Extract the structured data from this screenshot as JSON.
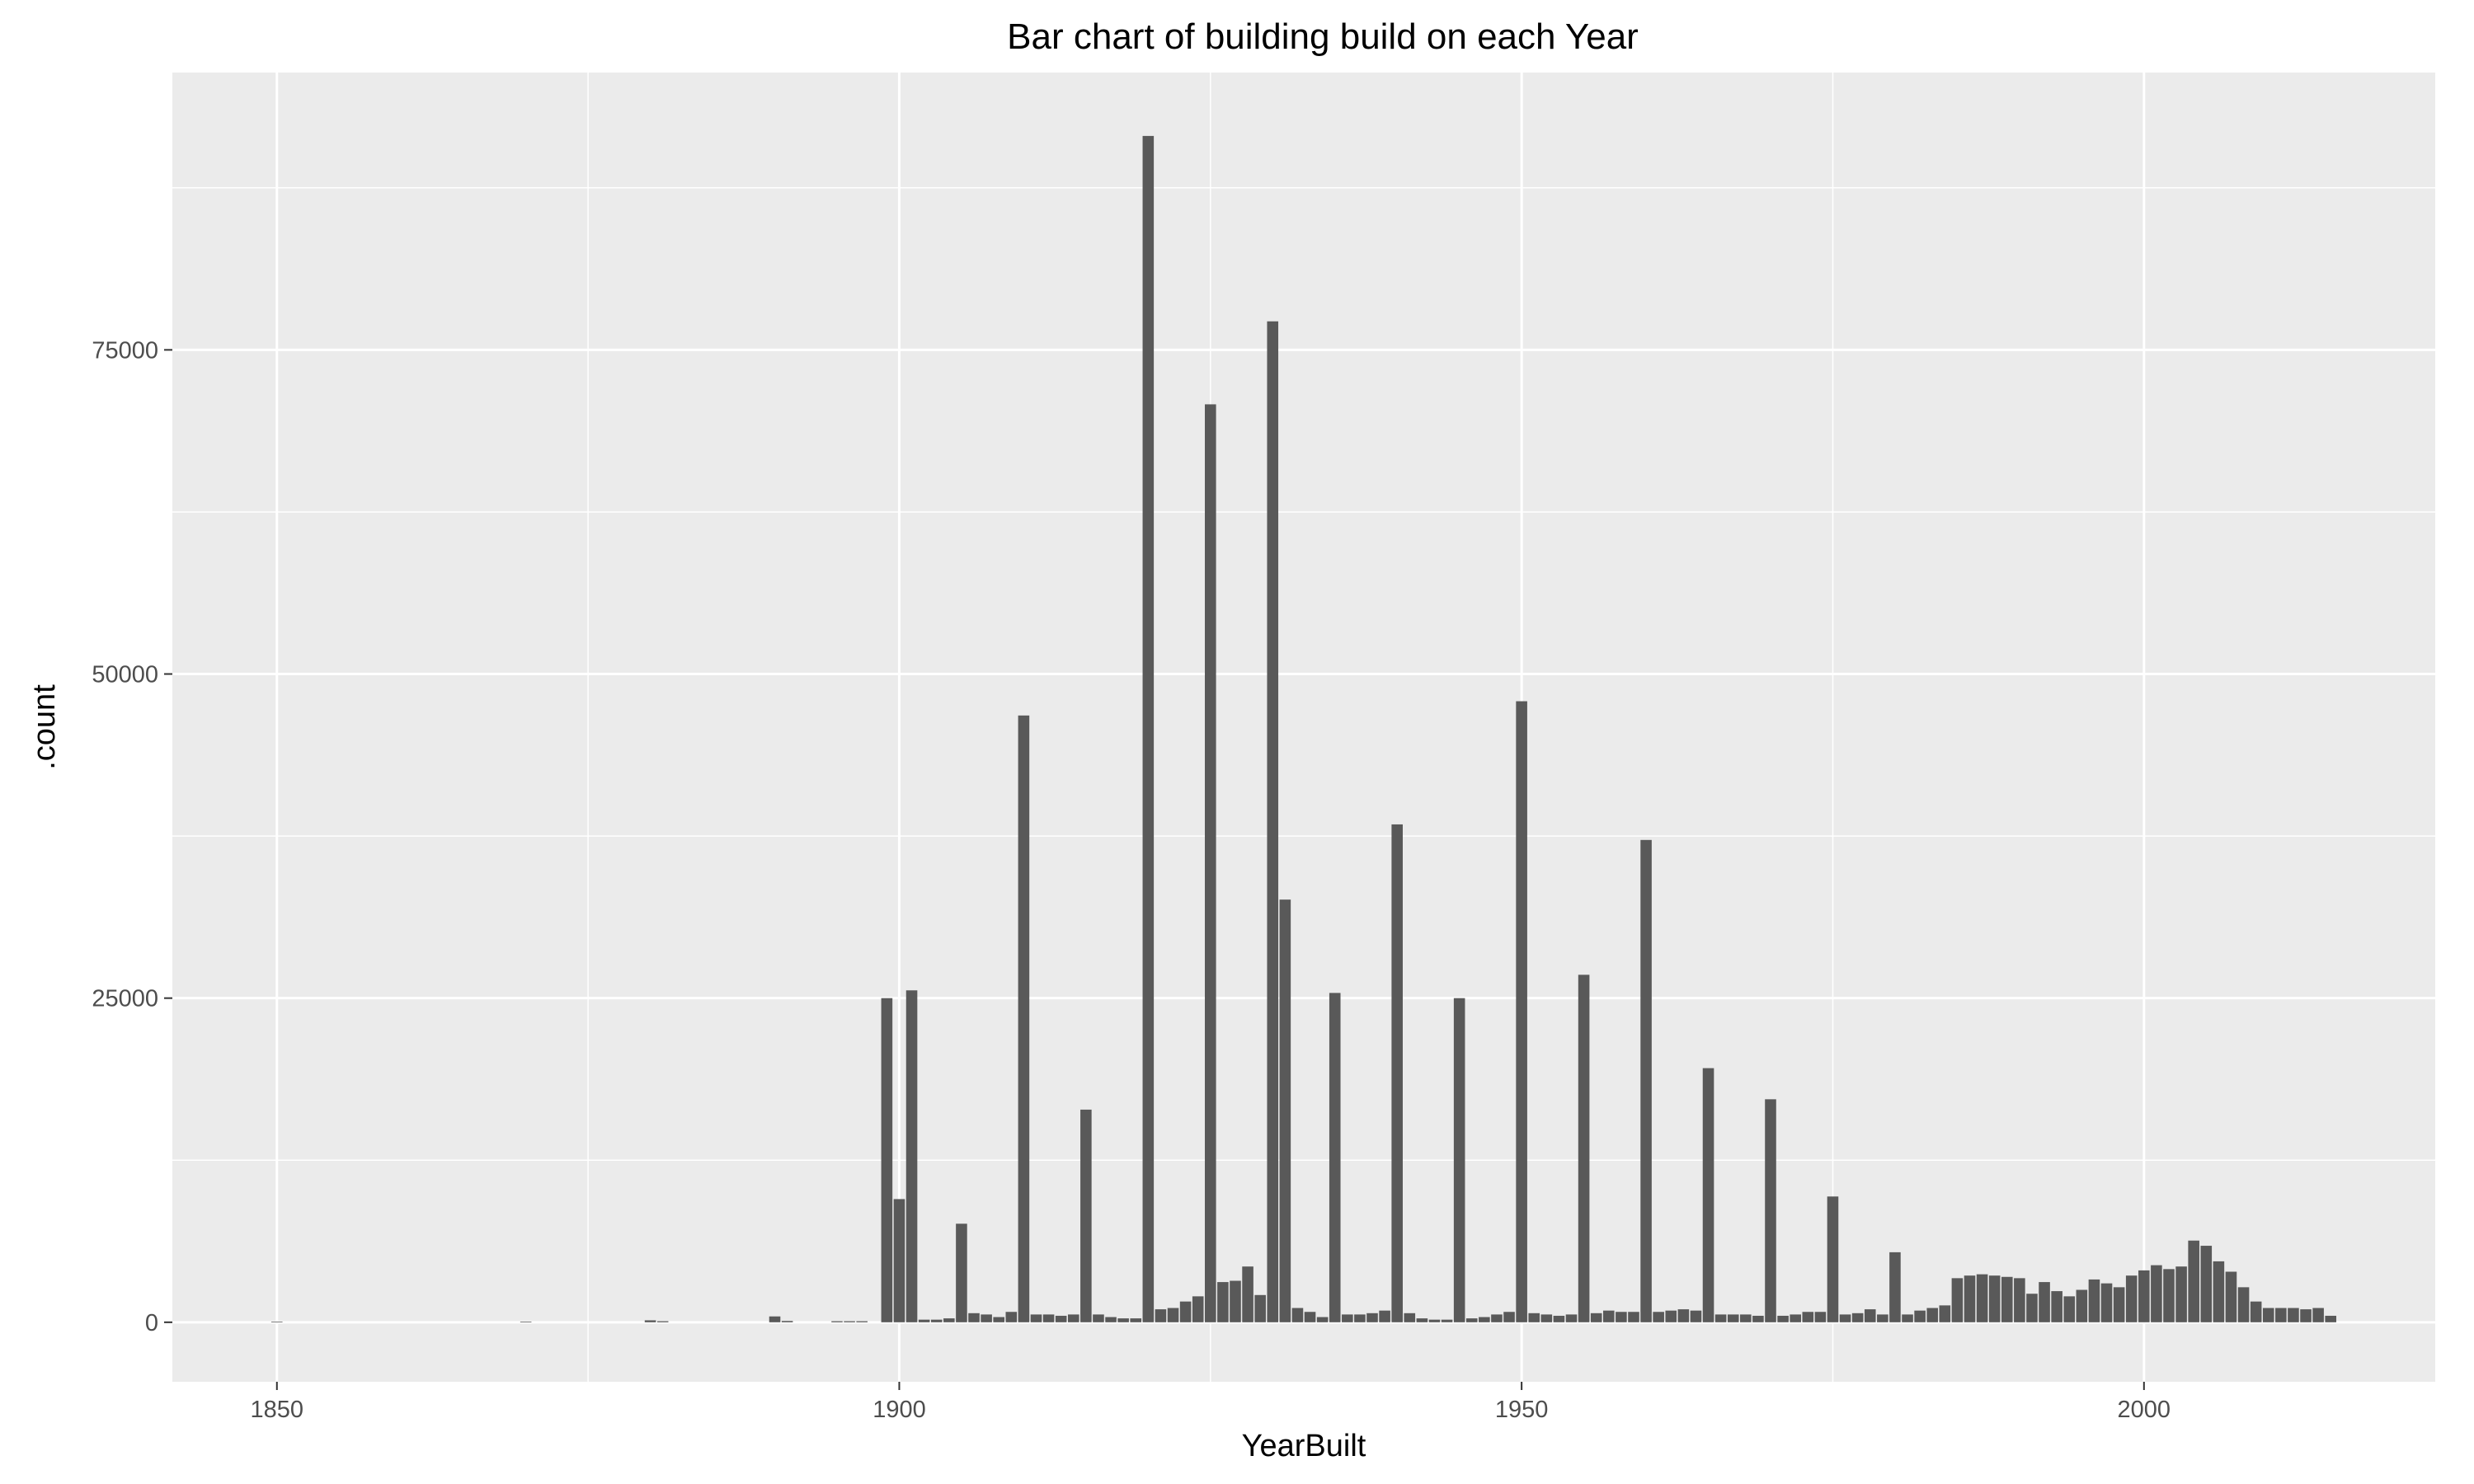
{
  "chart_data": {
    "type": "bar",
    "title": "Bar chart of building build on each Year",
    "xlabel": "YearBuilt",
    "ylabel": ".count",
    "xlim": [
      1841.6,
      2023.4
    ],
    "ylim": [
      -4590,
      96390
    ],
    "x_ticks": [
      1850,
      1900,
      1950,
      2000
    ],
    "y_ticks": [
      0,
      25000,
      50000,
      75000
    ],
    "x_tick_labels": [
      "1850",
      "1900",
      "1950",
      "2000"
    ],
    "y_tick_labels": [
      "0",
      "25000",
      "50000",
      "75000"
    ],
    "grid": true,
    "panel_background": "#ebebeb",
    "grid_color": "#ffffff",
    "bar_color": "#595959",
    "x": [
      1850,
      1870,
      1880,
      1881,
      1890,
      1891,
      1895,
      1896,
      1897,
      1899,
      1900,
      1901,
      1902,
      1903,
      1904,
      1905,
      1906,
      1907,
      1908,
      1909,
      1910,
      1911,
      1912,
      1913,
      1914,
      1915,
      1916,
      1917,
      1918,
      1919,
      1920,
      1921,
      1922,
      1923,
      1924,
      1925,
      1926,
      1927,
      1928,
      1929,
      1930,
      1931,
      1932,
      1933,
      1934,
      1935,
      1936,
      1937,
      1938,
      1939,
      1940,
      1941,
      1942,
      1943,
      1944,
      1945,
      1946,
      1947,
      1948,
      1949,
      1950,
      1951,
      1952,
      1953,
      1954,
      1955,
      1956,
      1957,
      1958,
      1959,
      1960,
      1961,
      1962,
      1963,
      1964,
      1965,
      1966,
      1967,
      1968,
      1969,
      1970,
      1971,
      1972,
      1973,
      1974,
      1975,
      1976,
      1977,
      1978,
      1979,
      1980,
      1981,
      1982,
      1983,
      1984,
      1985,
      1986,
      1987,
      1988,
      1989,
      1990,
      1991,
      1992,
      1993,
      1994,
      1995,
      1996,
      1997,
      1998,
      1999,
      2000,
      2001,
      2002,
      2003,
      2004,
      2005,
      2006,
      2007,
      2008,
      2009,
      2010,
      2011,
      2012,
      2013,
      2014,
      2015
    ],
    "values": [
      50,
      50,
      150,
      80,
      450,
      100,
      80,
      80,
      80,
      25000,
      9500,
      25600,
      200,
      200,
      300,
      7600,
      700,
      600,
      400,
      800,
      46800,
      600,
      600,
      500,
      600,
      16400,
      600,
      400,
      300,
      300,
      91500,
      1000,
      1100,
      1600,
      2000,
      70800,
      3100,
      3200,
      4300,
      2100,
      77200,
      32600,
      1100,
      800,
      400,
      25400,
      600,
      600,
      700,
      900,
      38400,
      700,
      300,
      200,
      200,
      25000,
      300,
      400,
      600,
      800,
      47900,
      700,
      600,
      500,
      600,
      26800,
      700,
      900,
      800,
      800,
      37200,
      800,
      900,
      1000,
      900,
      19600,
      600,
      600,
      600,
      500,
      17200,
      500,
      600,
      800,
      800,
      9700,
      600,
      700,
      1000,
      600,
      5400,
      600,
      900,
      1100,
      1300,
      3400,
      3600,
      3700,
      3600,
      3500,
      3400,
      2200,
      3100,
      2400,
      2000,
      2500,
      3300,
      3000,
      2700,
      3600,
      4000,
      4400,
      4100,
      4300,
      6300,
      5900,
      4700,
      3900,
      2700,
      1600,
      1100,
      1100,
      1100,
      1000,
      1100,
      500
    ]
  }
}
